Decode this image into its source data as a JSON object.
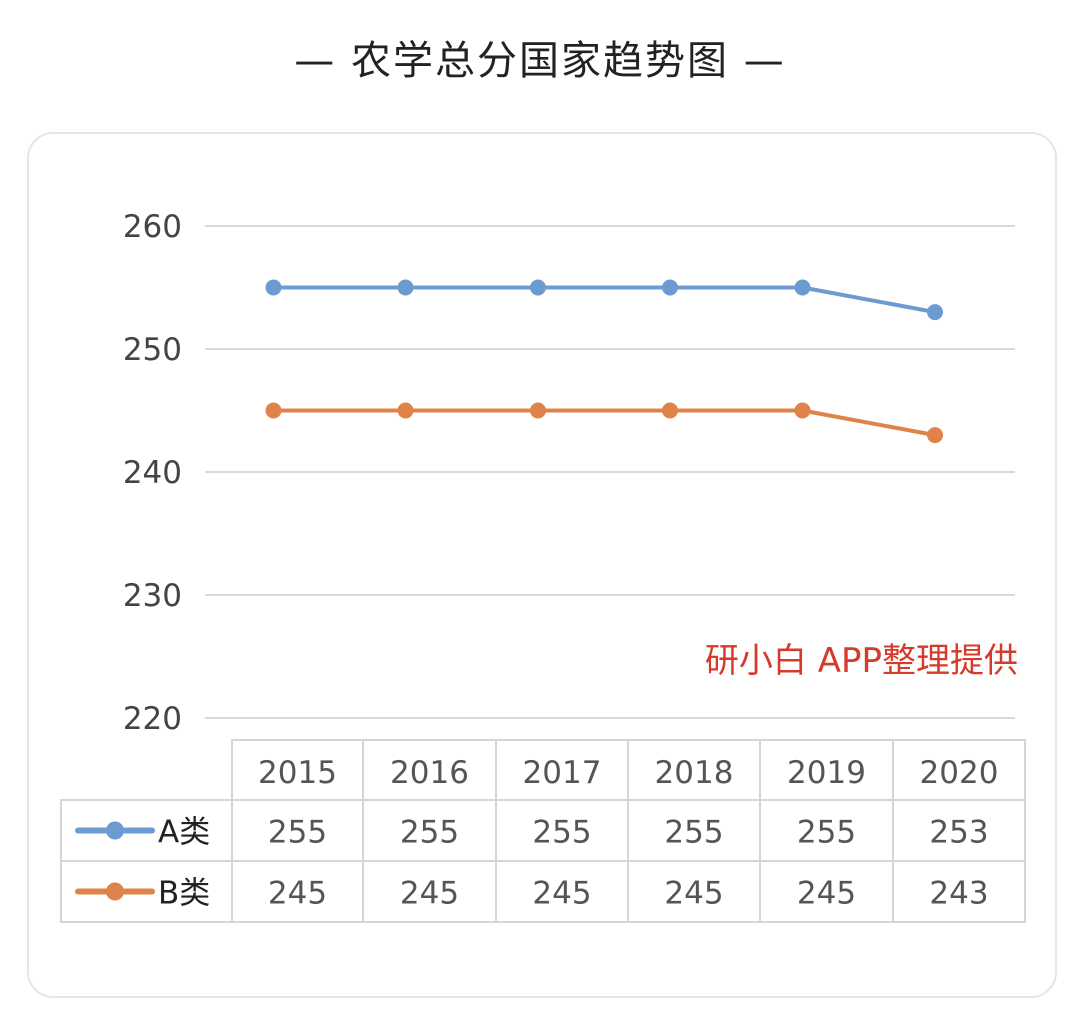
{
  "page": {
    "title": "— 农学总分国家趋势图 —"
  },
  "watermark": "研小白 APP整理提供",
  "chart_data": {
    "type": "line",
    "categories": [
      "2015",
      "2016",
      "2017",
      "2018",
      "2019",
      "2020"
    ],
    "series": [
      {
        "name": "A类",
        "color": "#6c9bd2",
        "values": [
          255,
          255,
          255,
          255,
          255,
          253
        ]
      },
      {
        "name": "B类",
        "color": "#e0834a",
        "values": [
          245,
          245,
          245,
          245,
          245,
          243
        ]
      }
    ],
    "yticks": [
      260,
      250,
      240,
      230,
      220
    ],
    "ylim": [
      220,
      260
    ],
    "grid": true,
    "legend": "data-table",
    "title": "— 农学总分国家趋势图 —",
    "xlabel": "",
    "ylabel": ""
  }
}
